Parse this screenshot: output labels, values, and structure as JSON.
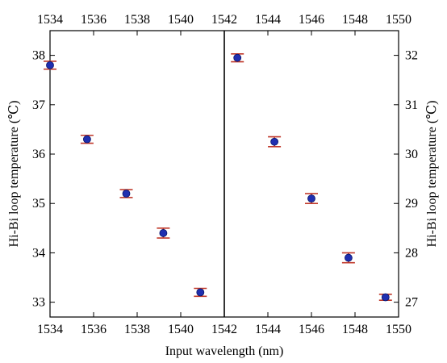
{
  "chart_data": {
    "type": "scatter",
    "xlabel": "Input wavelength (nm)",
    "x_range": [
      1534,
      1550
    ],
    "x_ticks": [
      1534,
      1536,
      1538,
      1540,
      1542,
      1544,
      1546,
      1548,
      1550
    ],
    "top_x_ticks": [
      1534,
      1536,
      1538,
      1540,
      1542,
      1544,
      1546,
      1548,
      1550
    ],
    "left_axis": {
      "label": "Hi-Bi loop temperature (℃)",
      "range": [
        32.7,
        38.5
      ],
      "ticks": [
        33,
        34,
        35,
        36,
        37,
        38
      ]
    },
    "right_axis": {
      "label": "Hi-Bi loop temperature (℃)",
      "range": [
        26.7,
        32.5
      ],
      "ticks": [
        27,
        28,
        29,
        30,
        31,
        32
      ]
    },
    "divider_at": 1542,
    "series": [
      {
        "axis": "left",
        "x": [
          1534.0,
          1535.7,
          1537.5,
          1539.2,
          1540.9
        ],
        "y": [
          37.8,
          36.3,
          35.2,
          34.4,
          33.2
        ],
        "error": [
          0.08,
          0.08,
          0.08,
          0.1,
          0.08
        ]
      },
      {
        "axis": "right",
        "x": [
          1542.6,
          1544.3,
          1546.0,
          1547.7,
          1549.4
        ],
        "y": [
          31.95,
          30.25,
          29.1,
          27.9,
          27.1
        ],
        "error": [
          0.08,
          0.1,
          0.1,
          0.1,
          0.06
        ]
      }
    ],
    "colors": {
      "marker": "#1f2fb0",
      "error_bar": "#c0392b",
      "axes": "#000000"
    },
    "grid": false
  }
}
